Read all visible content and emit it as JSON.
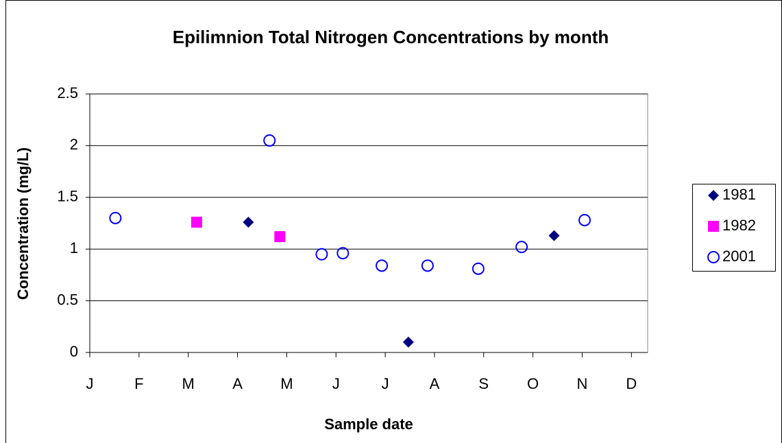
{
  "chart_data": {
    "type": "scatter",
    "title": "Epilimnion Total Nitrogen Concentrations by month",
    "xlabel": "Sample date",
    "ylabel": "Concentration (mg/L)",
    "xlim": [
      0,
      11.33
    ],
    "xticks": [
      {
        "value": 0,
        "label": "J"
      },
      {
        "value": 1,
        "label": "F"
      },
      {
        "value": 2,
        "label": "M"
      },
      {
        "value": 3,
        "label": "A"
      },
      {
        "value": 4,
        "label": "M"
      },
      {
        "value": 5,
        "label": "J"
      },
      {
        "value": 6,
        "label": "J"
      },
      {
        "value": 7,
        "label": "A"
      },
      {
        "value": 8,
        "label": "S"
      },
      {
        "value": 9,
        "label": "O"
      },
      {
        "value": 10,
        "label": "N"
      },
      {
        "value": 11,
        "label": "D"
      }
    ],
    "ylim": [
      0,
      2.5
    ],
    "yticks": [
      0,
      0.5,
      1,
      1.5,
      2,
      2.5
    ],
    "grid": true,
    "legend": "right",
    "series": [
      {
        "name": "1981",
        "color": "#000080",
        "marker": "diamond",
        "x": [
          3.22,
          6.47,
          9.43
        ],
        "values": [
          1.26,
          0.1,
          1.13
        ]
      },
      {
        "name": "1982",
        "color": "#ff00ff",
        "marker": "square",
        "x": [
          2.17,
          3.86
        ],
        "values": [
          1.26,
          1.12
        ]
      },
      {
        "name": "2001",
        "color": "#0000ff",
        "marker": "circle",
        "x": [
          0.52,
          3.65,
          4.71,
          5.14,
          5.93,
          6.86,
          7.89,
          8.77,
          10.05
        ],
        "values": [
          1.3,
          2.05,
          0.95,
          0.96,
          0.84,
          0.84,
          0.81,
          1.02,
          1.28
        ]
      }
    ]
  }
}
